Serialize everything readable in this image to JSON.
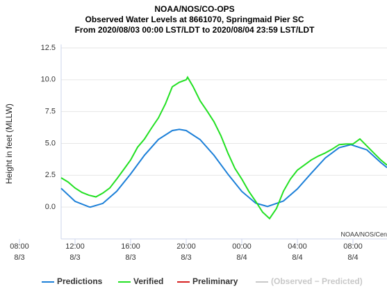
{
  "chart_data": {
    "type": "line",
    "title": [
      "NOAA/NOS/CO-OPS",
      "Observed Water Levels at 8661070, Springmaid Pier SC",
      "From 2020/08/03 00:00 LST/LDT to 2020/08/04 23:59 LST/LDT"
    ],
    "ylabel": "Height in feet (MLLW)",
    "credit": "NOAA/NOS/Cen",
    "xlim": [
      11,
      34.45
    ],
    "xticks": [
      {
        "value": 8,
        "label": "08:00\n8/3"
      },
      {
        "value": 12,
        "label": "12:00\n8/3"
      },
      {
        "value": 16,
        "label": "16:00\n8/3"
      },
      {
        "value": 20,
        "label": "20:00\n8/3"
      },
      {
        "value": 24,
        "label": "00:00\n8/4"
      },
      {
        "value": 28,
        "label": "04:00\n8/4"
      },
      {
        "value": 32,
        "label": "08:00\n8/4"
      }
    ],
    "ylim": [
      -2.5,
      12.5
    ],
    "yticks": [
      {
        "value": 0,
        "label": "0.0"
      },
      2.5,
      {
        "value": 5,
        "label": "5.0"
      },
      7.5,
      {
        "value": 10,
        "label": "10.0"
      },
      12.5
    ],
    "grid": true,
    "series": [
      {
        "name": "Predictions",
        "color": "#1b7fd8",
        "x": [
          11,
          12,
          13,
          13.1,
          14,
          15,
          16,
          17,
          18,
          19,
          19.5,
          20,
          21,
          22,
          23,
          24,
          25,
          25.85,
          27,
          28,
          29,
          30,
          31,
          31.85,
          33,
          34,
          34.45
        ],
        "values": [
          1.47,
          0.45,
          0.02,
          0,
          0.29,
          1.24,
          2.6,
          4.08,
          5.31,
          6.01,
          6.1,
          6.01,
          5.3,
          4.07,
          2.59,
          1.23,
          0.31,
          0.05,
          0.48,
          1.43,
          2.66,
          3.85,
          4.66,
          4.9,
          4.5,
          3.5,
          3.1
        ]
      },
      {
        "name": "Verified",
        "color": "#22e022",
        "x": [
          11,
          11.5,
          12,
          12.5,
          13,
          13.5,
          14,
          14.5,
          15,
          15.5,
          16,
          16.5,
          17,
          17.5,
          18,
          18.5,
          19,
          19.5,
          20,
          20.1,
          20.5,
          21,
          21.5,
          22,
          22.5,
          23,
          23.5,
          24,
          24.5,
          25,
          25.5,
          26,
          26.5,
          27,
          27.5,
          28,
          28.5,
          29,
          29.5,
          30,
          30.5,
          31,
          31.5,
          32,
          32.5,
          33,
          33.5,
          34,
          34.45
        ],
        "values": [
          2.3,
          1.97,
          1.5,
          1.15,
          0.93,
          0.8,
          1.1,
          1.5,
          2.2,
          2.95,
          3.7,
          4.7,
          5.35,
          6.2,
          7.0,
          8.1,
          9.45,
          9.8,
          10.0,
          10.2,
          9.45,
          8.35,
          7.55,
          6.7,
          5.6,
          4.25,
          3.05,
          2.2,
          1.25,
          0.45,
          -0.4,
          -0.9,
          -0.1,
          1.25,
          2.2,
          2.9,
          3.3,
          3.7,
          4.0,
          4.25,
          4.55,
          4.9,
          4.95,
          4.95,
          5.35,
          4.8,
          4.25,
          3.7,
          3.3
        ]
      },
      {
        "name": "Preliminary",
        "color": "#d62020"
      },
      {
        "name": "(Observed − Predicted)",
        "color": "#c8c8c8"
      }
    ]
  }
}
